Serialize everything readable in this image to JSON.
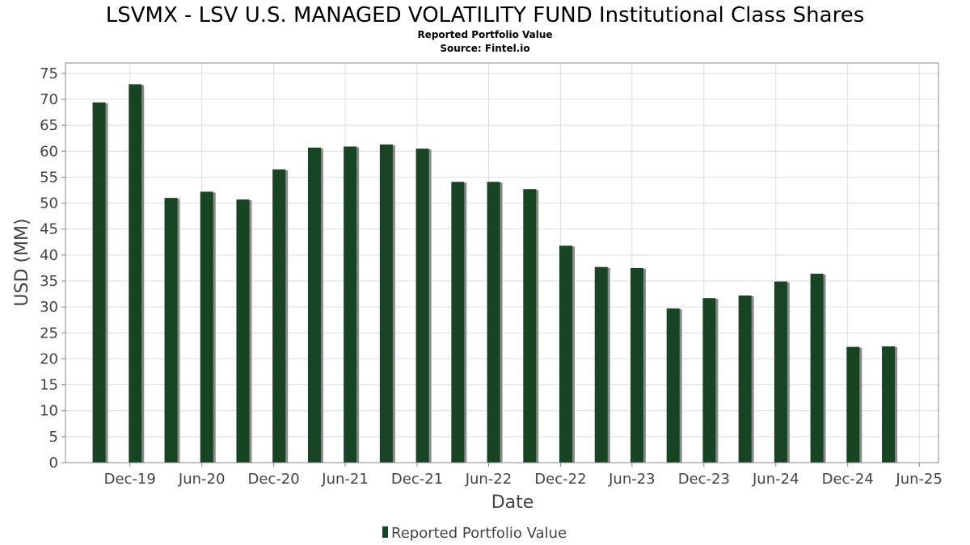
{
  "title": "LSVMX - LSV U.S. MANAGED VOLATILITY FUND Institutional Class Shares",
  "subtitle_1": "Reported Portfolio Value",
  "subtitle_2": "Source: Fintel.io",
  "colors": {
    "bar": "#174423",
    "bar_shadow": "#8a8a8a",
    "grid": "#dddddd",
    "plot_border": "#888888"
  },
  "chart_data": {
    "type": "bar",
    "xlabel": "Date",
    "ylabel": "USD (MM)",
    "ylim": [
      0,
      77
    ],
    "yticks": [
      0,
      5,
      10,
      15,
      20,
      25,
      30,
      35,
      40,
      45,
      50,
      55,
      60,
      65,
      70,
      75
    ],
    "xlim": [
      "2019-06-20",
      "2025-07-20"
    ],
    "xticks": [
      {
        "label": "Dec-19",
        "date": "2019-12-01"
      },
      {
        "label": "Jun-20",
        "date": "2020-06-01"
      },
      {
        "label": "Dec-20",
        "date": "2020-12-01"
      },
      {
        "label": "Jun-21",
        "date": "2021-06-01"
      },
      {
        "label": "Dec-21",
        "date": "2021-12-01"
      },
      {
        "label": "Jun-22",
        "date": "2022-06-01"
      },
      {
        "label": "Dec-22",
        "date": "2022-12-01"
      },
      {
        "label": "Jun-23",
        "date": "2023-06-01"
      },
      {
        "label": "Dec-23",
        "date": "2023-12-01"
      },
      {
        "label": "Jun-24",
        "date": "2024-06-01"
      },
      {
        "label": "Dec-24",
        "date": "2024-12-01"
      },
      {
        "label": "Jun-25",
        "date": "2025-06-01"
      }
    ],
    "grid": true,
    "legend": {
      "position": "bottom-center",
      "entries": [
        "Reported Portfolio Value"
      ]
    },
    "series": [
      {
        "name": "Reported Portfolio Value",
        "points": [
          {
            "date": "2019-09-30",
            "value": 69.4
          },
          {
            "date": "2019-12-31",
            "value": 72.9
          },
          {
            "date": "2020-03-31",
            "value": 51.0
          },
          {
            "date": "2020-06-30",
            "value": 52.2
          },
          {
            "date": "2020-09-30",
            "value": 50.7
          },
          {
            "date": "2020-12-31",
            "value": 56.5
          },
          {
            "date": "2021-03-31",
            "value": 60.7
          },
          {
            "date": "2021-06-30",
            "value": 60.9
          },
          {
            "date": "2021-09-30",
            "value": 61.3
          },
          {
            "date": "2021-12-31",
            "value": 60.5
          },
          {
            "date": "2022-03-31",
            "value": 54.1
          },
          {
            "date": "2022-06-30",
            "value": 54.1
          },
          {
            "date": "2022-09-30",
            "value": 52.7
          },
          {
            "date": "2022-12-31",
            "value": 41.8
          },
          {
            "date": "2023-03-31",
            "value": 37.7
          },
          {
            "date": "2023-06-30",
            "value": 37.5
          },
          {
            "date": "2023-09-30",
            "value": 29.7
          },
          {
            "date": "2023-12-31",
            "value": 31.7
          },
          {
            "date": "2024-03-31",
            "value": 32.2
          },
          {
            "date": "2024-06-30",
            "value": 34.9
          },
          {
            "date": "2024-09-30",
            "value": 36.4
          },
          {
            "date": "2024-12-31",
            "value": 22.3
          },
          {
            "date": "2025-03-31",
            "value": 22.4
          }
        ]
      }
    ]
  }
}
